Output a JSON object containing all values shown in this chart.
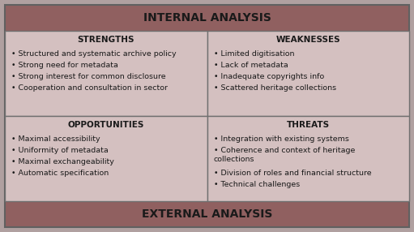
{
  "title_top": "INTERNAL ANALYSIS",
  "title_bottom": "EXTERNAL ANALYSIS",
  "header_bg": "#906060",
  "cell_bg": "#D4C0C0",
  "border_color": "#808080",
  "outer_bg": "#B0A0A0",
  "text_color": "#1A1A1A",
  "quadrants": [
    {
      "title": "STRENGTHS",
      "items": [
        "Structured and systematic archive policy",
        "Strong need for metadata",
        "Strong interest for common disclosure",
        "Cooperation and consultation in sector"
      ],
      "position": "top-left"
    },
    {
      "title": "WEAKNESSES",
      "items": [
        "Limited digitisation",
        "Lack of metadata",
        "Inadequate copyrights info",
        "Scattered heritage collections"
      ],
      "position": "top-right"
    },
    {
      "title": "OPPORTUNITIES",
      "items": [
        "Maximal accessibility",
        "Uniformity of metadata",
        "Maximal exchangeability",
        "Automatic specification"
      ],
      "position": "bottom-left"
    },
    {
      "title": "THREATS",
      "items": [
        "Integration with existing systems",
        "Coherence and context of heritage\ncollections",
        "Division of roles and financial structure",
        "Technical challenges"
      ],
      "position": "bottom-right"
    }
  ],
  "figsize": [
    5.11,
    2.86
  ],
  "dpi": 100
}
